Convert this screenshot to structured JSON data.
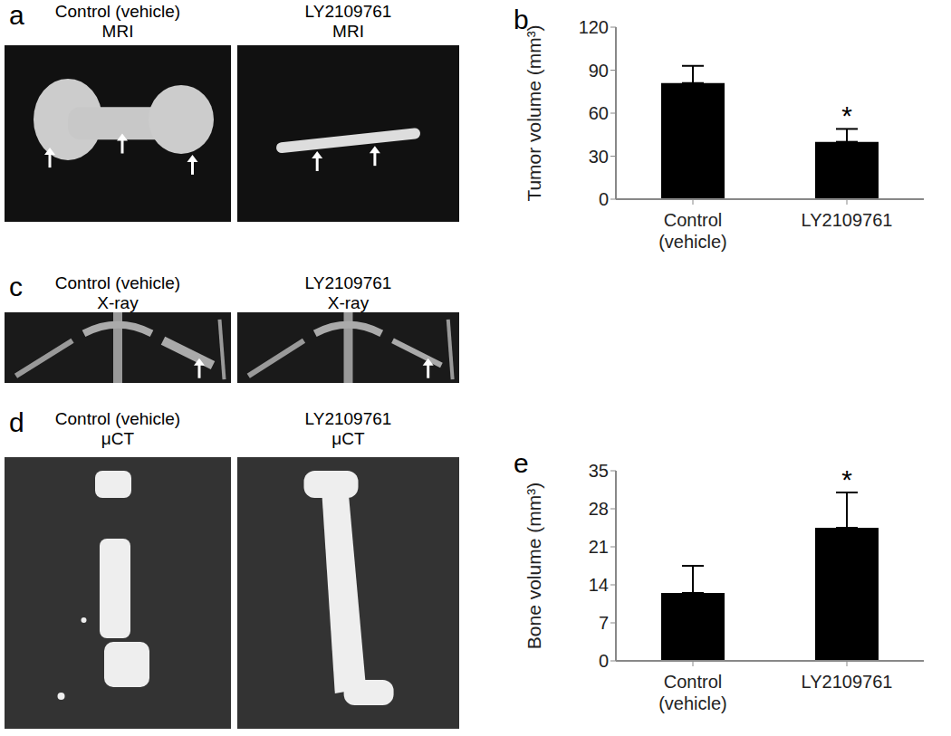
{
  "panels": [
    {
      "label": "a",
      "images": [
        {
          "title": "Control (vehicle)",
          "modality": "MRI"
        },
        {
          "title": "LY2109761",
          "modality": "MRI"
        }
      ]
    },
    {
      "label": "c",
      "images": [
        {
          "title": "Control (vehicle)",
          "modality": "X-ray"
        },
        {
          "title": "LY2109761",
          "modality": "X-ray"
        }
      ]
    },
    {
      "label": "d",
      "images": [
        {
          "title": "Control (vehicle)",
          "modality": "μCT"
        },
        {
          "title": "LY2109761",
          "modality": "μCT"
        }
      ]
    }
  ],
  "chart_data": [
    {
      "panel": "b",
      "type": "bar",
      "categories": [
        "Control (vehicle)",
        "LY2109761"
      ],
      "values": [
        81,
        40
      ],
      "errors": [
        12,
        9
      ],
      "annotations": [
        null,
        "*"
      ],
      "color": "#000000",
      "ylabel": "Tumor volume (mm³)",
      "ylim": [
        0,
        120
      ],
      "yticks": [
        0,
        30,
        60,
        90,
        120
      ]
    },
    {
      "panel": "e",
      "type": "bar",
      "categories": [
        "Control (vehicle)",
        "LY2109761"
      ],
      "values": [
        12.5,
        24.5
      ],
      "errors": [
        5,
        6.5
      ],
      "annotations": [
        null,
        "*"
      ],
      "color": "#000000",
      "ylabel": "Bone volume (mm³)",
      "ylim": [
        0,
        35
      ],
      "yticks": [
        0,
        7,
        14,
        21,
        28,
        35
      ]
    }
  ]
}
